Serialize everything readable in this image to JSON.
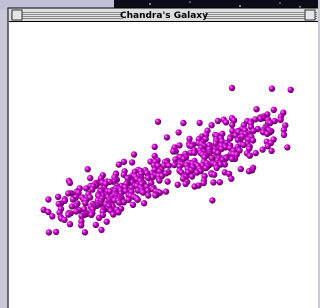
{
  "window": {
    "title": "Chandra's Galaxy"
  }
}
